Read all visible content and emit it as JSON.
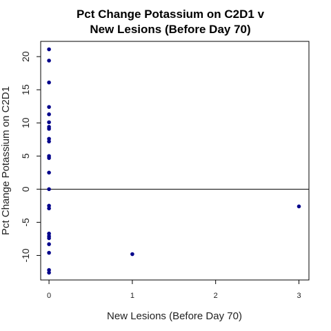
{
  "chart_data": {
    "type": "scatter",
    "title": [
      "Pct Change Potassium on C2D1 v",
      "New Lesions (Before Day 70)"
    ],
    "xlabel": "New Lesions (Before Day 70)",
    "ylabel": "Pct Change Potassium on C2D1",
    "xlim": [
      -0.1,
      3.12
    ],
    "ylim": [
      -13.7,
      22.3
    ],
    "x_ticks": [
      0,
      1,
      2,
      3
    ],
    "x_tick_labels": [
      "0",
      "1",
      "2",
      "3"
    ],
    "y_ticks": [
      -10,
      -5,
      0,
      5,
      10,
      15,
      20
    ],
    "y_tick_labels": [
      "-10",
      "-5",
      "0",
      "5",
      "10",
      "15",
      "20"
    ],
    "hline": 0,
    "point_color": "#00008b",
    "points": [
      {
        "x": 0,
        "y": 21.1
      },
      {
        "x": 0,
        "y": 19.4
      },
      {
        "x": 0,
        "y": 16.1
      },
      {
        "x": 0,
        "y": 12.4
      },
      {
        "x": 0,
        "y": 11.3
      },
      {
        "x": 0,
        "y": 10.1
      },
      {
        "x": 0,
        "y": 9.4
      },
      {
        "x": 0,
        "y": 9.1
      },
      {
        "x": 0,
        "y": 7.6
      },
      {
        "x": 0,
        "y": 7.2
      },
      {
        "x": 0,
        "y": 5.0
      },
      {
        "x": 0,
        "y": 4.7
      },
      {
        "x": 0,
        "y": 2.5
      },
      {
        "x": 0,
        "y": 0.0
      },
      {
        "x": 0,
        "y": -2.5
      },
      {
        "x": 0,
        "y": -2.9
      },
      {
        "x": 0,
        "y": -6.7
      },
      {
        "x": 0,
        "y": -7.1
      },
      {
        "x": 0,
        "y": -7.4
      },
      {
        "x": 0,
        "y": -8.3
      },
      {
        "x": 0,
        "y": -9.6
      },
      {
        "x": 0,
        "y": -12.2
      },
      {
        "x": 0,
        "y": -12.6
      },
      {
        "x": 1,
        "y": -9.8
      },
      {
        "x": 3,
        "y": -2.6
      }
    ]
  }
}
